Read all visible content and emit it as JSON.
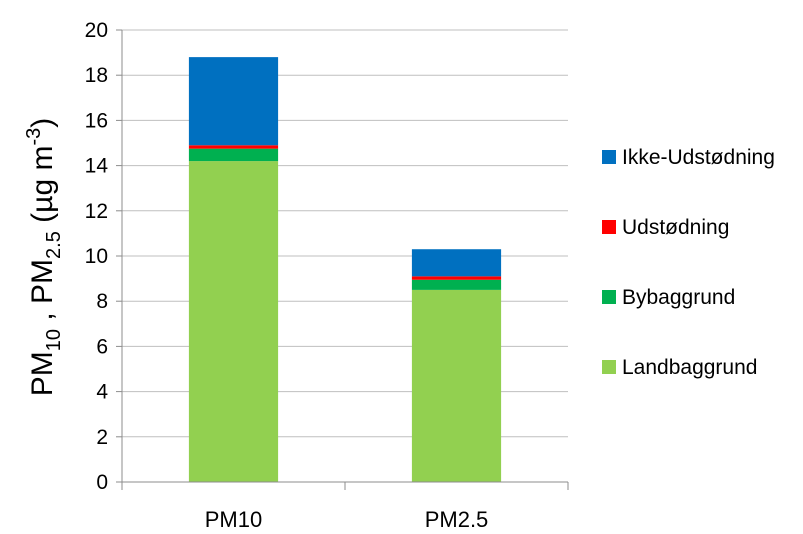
{
  "chart_data": {
    "type": "bar",
    "stacked": true,
    "categories": [
      "PM10",
      "PM2.5"
    ],
    "series": [
      {
        "name": "Landbaggrund",
        "values": [
          14.2,
          8.5
        ],
        "color": "#92d050"
      },
      {
        "name": "Bybaggrund",
        "values": [
          0.55,
          0.45
        ],
        "color": "#00b050"
      },
      {
        "name": "Udstødning",
        "values": [
          0.15,
          0.15
        ],
        "color": "#ff0000"
      },
      {
        "name": "Ikke-Udstødning",
        "values": [
          3.9,
          1.2
        ],
        "color": "#0070c0"
      }
    ],
    "ylim": [
      0,
      20
    ],
    "yticks": [
      "0",
      "2",
      "4",
      "6",
      "8",
      "10",
      "12",
      "14",
      "16",
      "18",
      "20"
    ],
    "ylabel_parts": {
      "a": "PM",
      "a_sub": "10",
      "sep": " , ",
      "b": "PM",
      "b_sub": "2.5",
      "unit_open": " (µg m",
      "unit_sup": "-3",
      "unit_close": ")"
    },
    "grid": true,
    "legend_position": "right",
    "legend_order": [
      "Ikke-Udstødning",
      "Udstødning",
      "Bybaggrund",
      "Landbaggrund"
    ],
    "colors": {
      "gridline": "#bfbfbf",
      "axis": "#8c8c8c"
    }
  }
}
